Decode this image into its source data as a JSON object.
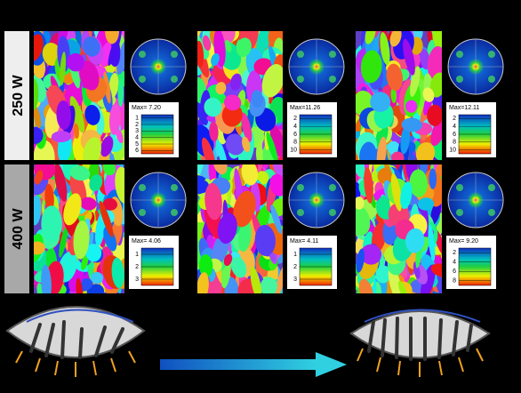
{
  "rows": [
    {
      "label": "250 W",
      "legends": [
        {
          "max": "Max= 7.20",
          "ticks": [
            "1",
            "2",
            "3",
            "4",
            "5",
            "6"
          ]
        },
        {
          "max": "Max=11.26",
          "ticks": [
            "2",
            "4",
            "6",
            "8",
            "10"
          ]
        },
        {
          "max": "Max=12.11",
          "ticks": [
            "2",
            "4",
            "6",
            "8",
            "10"
          ]
        }
      ]
    },
    {
      "label": "400 W",
      "legends": [
        {
          "max": "Max= 4.06",
          "ticks": [
            "1",
            "2",
            "3"
          ]
        },
        {
          "max": "Max= 4.11",
          "ticks": [
            "1",
            "2",
            "3"
          ]
        },
        {
          "max": "Max= 9.20",
          "ticks": [
            "2",
            "4",
            "6",
            "8"
          ]
        }
      ]
    }
  ]
}
